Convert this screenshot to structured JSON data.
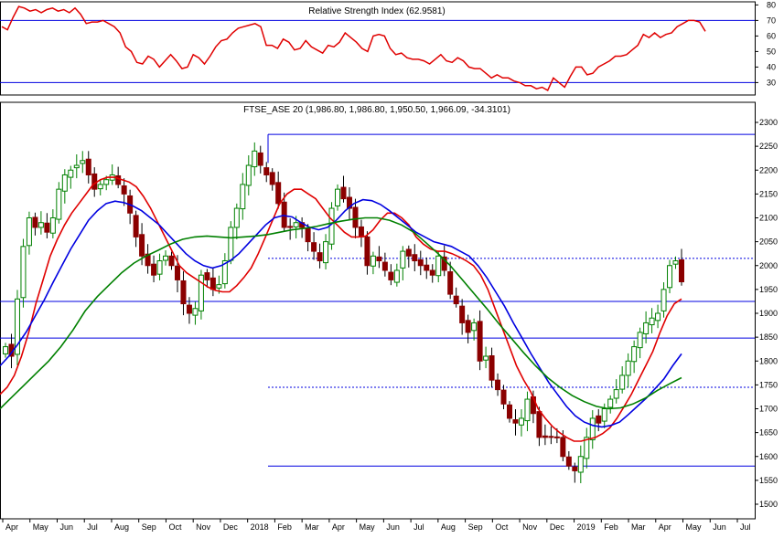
{
  "chart_data": [
    {
      "type": "line",
      "title": "Relative Strength Index (62.9581)",
      "ylim": [
        22,
        82
      ],
      "y_ticks": [
        30,
        40,
        50,
        60,
        70,
        80
      ],
      "levels": [
        70,
        30
      ],
      "series": [
        {
          "color": "#e00000",
          "values": [
            66,
            64,
            72,
            79,
            78,
            76,
            77,
            75,
            77,
            78,
            76,
            77,
            75,
            78,
            74,
            68,
            69,
            69,
            70,
            68,
            66,
            62,
            53,
            50,
            43,
            42,
            47,
            45,
            40,
            44,
            48,
            44,
            39,
            40,
            48,
            46,
            42,
            47,
            53,
            57,
            58,
            62,
            65,
            66,
            67,
            68,
            66,
            54,
            54,
            52,
            58,
            56,
            51,
            52,
            57,
            53,
            51,
            49,
            54,
            53,
            56,
            62,
            59,
            56,
            52,
            50,
            60,
            61,
            60,
            52,
            48,
            49,
            46,
            45,
            45,
            44,
            42,
            45,
            48,
            44,
            43,
            46,
            44,
            40,
            39,
            39,
            36,
            33,
            35,
            33,
            33,
            31,
            30,
            28,
            28,
            26,
            27,
            25,
            33,
            30,
            27,
            34,
            40,
            40,
            35,
            36,
            40,
            42,
            44,
            47,
            47,
            48,
            51,
            54,
            61,
            59,
            62,
            59,
            61,
            62,
            66,
            68,
            70,
            70,
            69,
            63
          ]
        }
      ]
    },
    {
      "type": "candlestick",
      "title": "FTSE_ASE 20 (1,986.80, 1,986.80, 1,950.50, 1,966.09, -34.3101)",
      "ylim": [
        1500,
        2300
      ],
      "y_ticks": [
        1500,
        1550,
        1600,
        1650,
        1700,
        1750,
        1800,
        1850,
        1900,
        1950,
        2000,
        2050,
        2100,
        2150,
        2200,
        2250,
        2300
      ],
      "x_ticks": [
        "Apr",
        "May",
        "Jun",
        "Jul",
        "Aug",
        "Sep",
        "Oct",
        "Nov",
        "Dec",
        "2018",
        "Feb",
        "Mar",
        "Apr",
        "May",
        "Jun",
        "Jul",
        "Aug",
        "Sep",
        "Oct",
        "Nov",
        "Dec",
        "2019",
        "Feb",
        "Mar",
        "Apr",
        "May",
        "Jun",
        "Jul"
      ],
      "closes": [
        1830,
        1810,
        1930,
        2040,
        2100,
        2080,
        2090,
        2070,
        2100,
        2160,
        2190,
        2200,
        2210,
        2220,
        2190,
        2160,
        2170,
        2180,
        2190,
        2170,
        2150,
        2110,
        2060,
        2020,
        2000,
        1980,
        2010,
        2020,
        2000,
        1970,
        1920,
        1900,
        1910,
        1980,
        1970,
        1950,
        1960,
        2010,
        2080,
        2120,
        2170,
        2210,
        2240,
        2210,
        2190,
        2170,
        2130,
        2080,
        2080,
        2090,
        2080,
        2050,
        2030,
        2010,
        2050,
        2120,
        2160,
        2140,
        2120,
        2080,
        2060,
        2000,
        2020,
        2010,
        1990,
        1970,
        1990,
        2030,
        2020,
        2010,
        2000,
        1990,
        1980,
        2020,
        1990,
        1940,
        1920,
        1880,
        1860,
        1880,
        1800,
        1810,
        1760,
        1740,
        1710,
        1680,
        1670,
        1680,
        1720,
        1690,
        1640,
        1640,
        1640,
        1640,
        1600,
        1580,
        1570,
        1600,
        1640,
        1680,
        1670,
        1700,
        1720,
        1740,
        1770,
        1800,
        1830,
        1860,
        1880,
        1890,
        1900,
        1950,
        2000,
        2010,
        1966
      ],
      "ma": [
        {
          "color": "#e00000",
          "values": [
            1730,
            1745,
            1770,
            1810,
            1860,
            1920,
            1970,
            2020,
            2055,
            2085,
            2110,
            2130,
            2150,
            2170,
            2180,
            2185,
            2185,
            2180,
            2175,
            2165,
            2145,
            2120,
            2090,
            2060,
            2030,
            2000,
            1985,
            1975,
            1965,
            1955,
            1948,
            1945,
            1945,
            1958,
            1975,
            1995,
            2025,
            2060,
            2095,
            2130,
            2150,
            2160,
            2160,
            2150,
            2140,
            2120,
            2100,
            2085,
            2070,
            2060,
            2060,
            2062,
            2075,
            2095,
            2110,
            2110,
            2100,
            2085,
            2060,
            2045,
            2035,
            2030,
            2030,
            2025,
            2018,
            2010,
            2000,
            1980,
            1950,
            1910,
            1870,
            1830,
            1790,
            1760,
            1735,
            1700,
            1680,
            1663,
            1650,
            1640,
            1632,
            1632,
            1636,
            1640,
            1648,
            1660,
            1680,
            1705,
            1730,
            1760,
            1790,
            1820,
            1860,
            1895,
            1920,
            1930
          ]
        },
        {
          "color": "#0000e0",
          "values": [
            1790,
            1810,
            1835,
            1862,
            1895,
            1928,
            1965,
            2000,
            2035,
            2065,
            2095,
            2115,
            2130,
            2135,
            2132,
            2125,
            2115,
            2100,
            2085,
            2065,
            2045,
            2025,
            2010,
            2000,
            1995,
            2000,
            2010,
            2025,
            2045,
            2065,
            2085,
            2100,
            2105,
            2102,
            2090,
            2080,
            2075,
            2080,
            2095,
            2115,
            2130,
            2138,
            2136,
            2128,
            2115,
            2100,
            2085,
            2070,
            2060,
            2050,
            2045,
            2040,
            2030,
            2020,
            2000,
            1975,
            1945,
            1915,
            1880,
            1848,
            1815,
            1785,
            1755,
            1730,
            1705,
            1685,
            1672,
            1665,
            1662,
            1665,
            1672,
            1688,
            1705,
            1722,
            1742,
            1762,
            1790,
            1815
          ]
        },
        {
          "color": "#008000",
          "values": [
            1700,
            1725,
            1750,
            1775,
            1800,
            1830,
            1865,
            1905,
            1935,
            1960,
            1985,
            2005,
            2020,
            2032,
            2045,
            2055,
            2060,
            2062,
            2060,
            2058,
            2060,
            2062,
            2065,
            2070,
            2075,
            2078,
            2082,
            2088,
            2093,
            2097,
            2100,
            2100,
            2095,
            2085,
            2070,
            2048,
            2025,
            2000,
            1970,
            1940,
            1910,
            1878,
            1848,
            1818,
            1790,
            1765,
            1745,
            1728,
            1715,
            1705,
            1700,
            1702,
            1710,
            1722,
            1738,
            1752,
            1765
          ]
        }
      ],
      "hlines_solid": [
        2275,
        1925,
        1848,
        1580
      ],
      "hlines_dotted": [
        2015,
        1745
      ]
    }
  ]
}
